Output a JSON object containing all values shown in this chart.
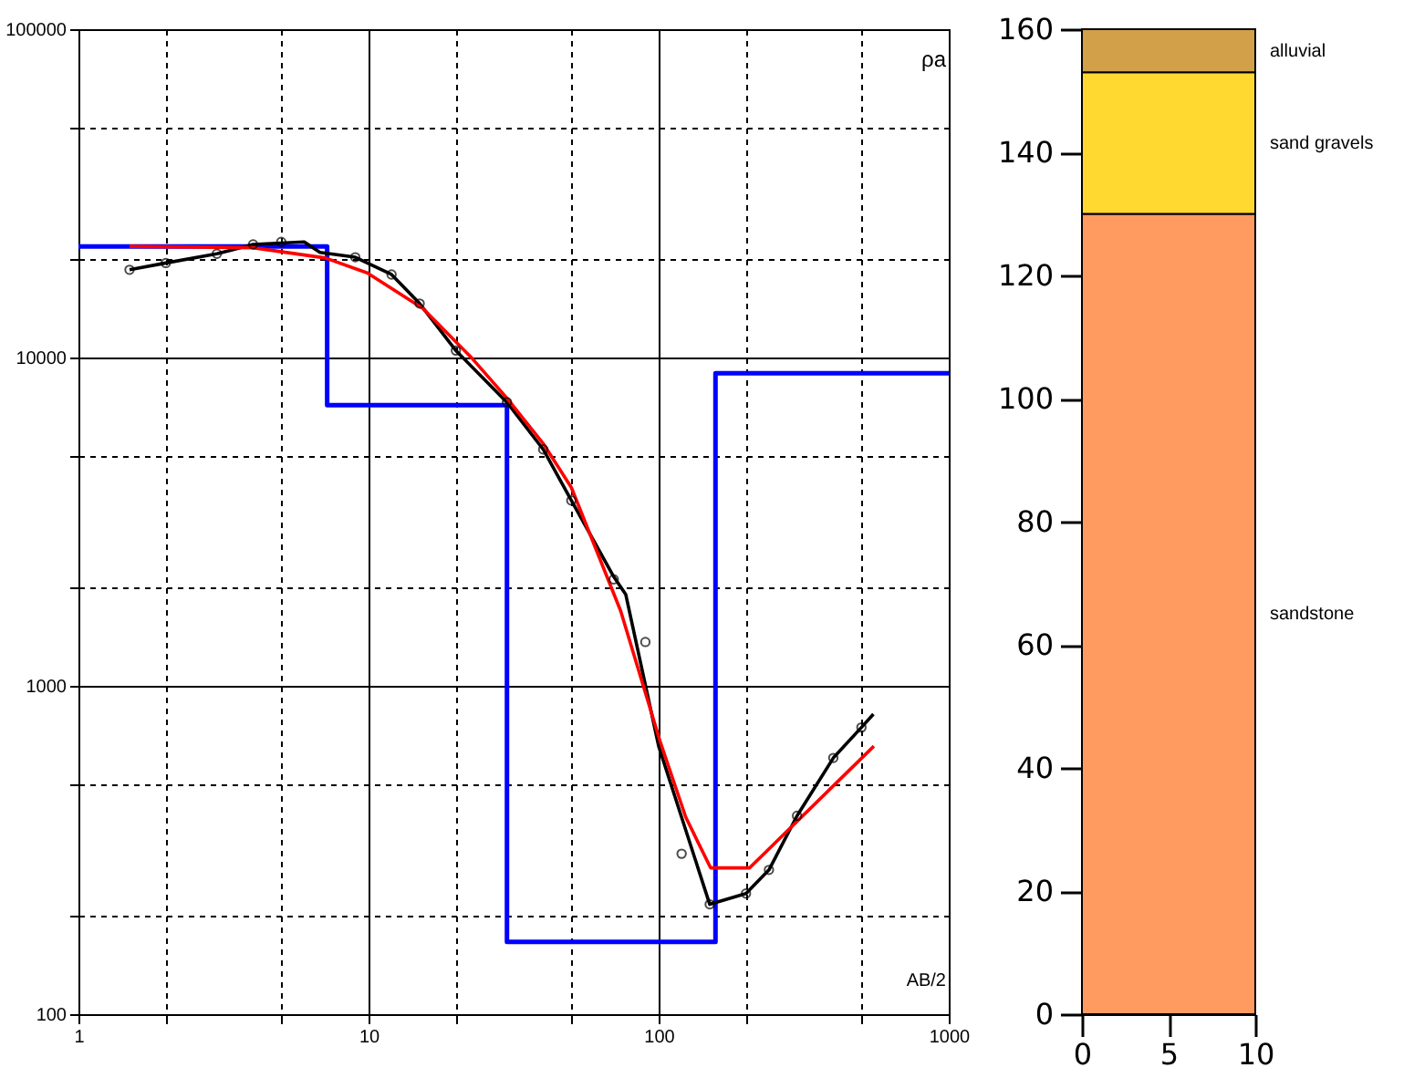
{
  "chart_data": [
    {
      "type": "line",
      "xlabel": "AB/2",
      "ylabel": "ρa",
      "log": "xy",
      "grid": true,
      "xlim": [
        1,
        1000
      ],
      "ylim": [
        100,
        100000
      ],
      "xticks": [
        1,
        {
          "value": 2,
          "label": null
        },
        {
          "value": 5,
          "label": null
        },
        10,
        {
          "value": 20,
          "label": null
        },
        {
          "value": 50,
          "label": null
        },
        100,
        {
          "value": 200,
          "label": null
        },
        {
          "value": 500,
          "label": null
        },
        1000
      ],
      "yticks": [
        100,
        {
          "value": 200,
          "label": null
        },
        {
          "value": 500,
          "label": null
        },
        1000,
        {
          "value": 2000,
          "label": null
        },
        {
          "value": 5000,
          "label": null
        },
        10000,
        {
          "value": 20000,
          "label": null
        },
        {
          "value": 50000,
          "label": null
        },
        100000
      ],
      "series": [
        {
          "type": "step",
          "color": "#0000ff",
          "x": [
            1,
            7.2,
            30,
            157,
            1000
          ],
          "values": [
            21800,
            7160,
            166,
            8950,
            8950
          ]
        },
        {
          "type": "line",
          "color": "#000000",
          "x": [
            1.5,
            2,
            3,
            4,
            6,
            6.8,
            9,
            12,
            15,
            20,
            30,
            40,
            50,
            70,
            77,
            100,
            150,
            200,
            240,
            300,
            400,
            500,
            550
          ],
          "values": [
            18500,
            19400,
            20700,
            22100,
            22500,
            20900,
            20200,
            17900,
            14600,
            10500,
            7300,
            5250,
            3670,
            2150,
            1900,
            655,
            216,
            233,
            275,
            402,
            603,
            747,
            820
          ]
        },
        {
          "type": "line",
          "color": "#ff0000",
          "x": [
            1.5,
            4,
            7.1,
            9.9,
            15.4,
            22.7,
            30,
            40,
            50,
            74,
            101,
            124,
            151,
            206,
            552
          ],
          "values": [
            21800,
            21600,
            20100,
            18100,
            14100,
            9960,
            7520,
            5470,
            4020,
            1690,
            680,
            398,
            279,
            279,
            655
          ]
        },
        {
          "type": "scatter",
          "marker": "circle",
          "color": "#000000",
          "x": [
            1.5,
            2,
            3,
            4,
            5,
            9,
            12,
            15,
            20,
            30,
            40,
            50,
            70,
            90,
            120,
            150,
            200,
            240,
            300,
            400,
            500
          ],
          "values": [
            18500,
            19400,
            20700,
            22100,
            22500,
            20200,
            17900,
            14600,
            10500,
            7310,
            5250,
            3670,
            2110,
            1360,
            308,
            216,
            233,
            275,
            402,
            603,
            747
          ]
        }
      ]
    },
    {
      "type": "bar",
      "stacked": true,
      "x": [
        5
      ],
      "xlim": [
        0,
        10
      ],
      "xticks": [
        0,
        5,
        10
      ],
      "ylim": [
        0,
        160
      ],
      "yticks": [
        0,
        20,
        40,
        60,
        80,
        100,
        120,
        140,
        160
      ],
      "series": [
        {
          "name": "sandstone",
          "color": "#ff9a60",
          "values": [
            130
          ]
        },
        {
          "name": "sand gravels",
          "color": "#ffd830",
          "values": [
            23
          ]
        },
        {
          "name": "alluvial",
          "color": "#d2a048",
          "values": [
            7
          ]
        }
      ]
    }
  ]
}
